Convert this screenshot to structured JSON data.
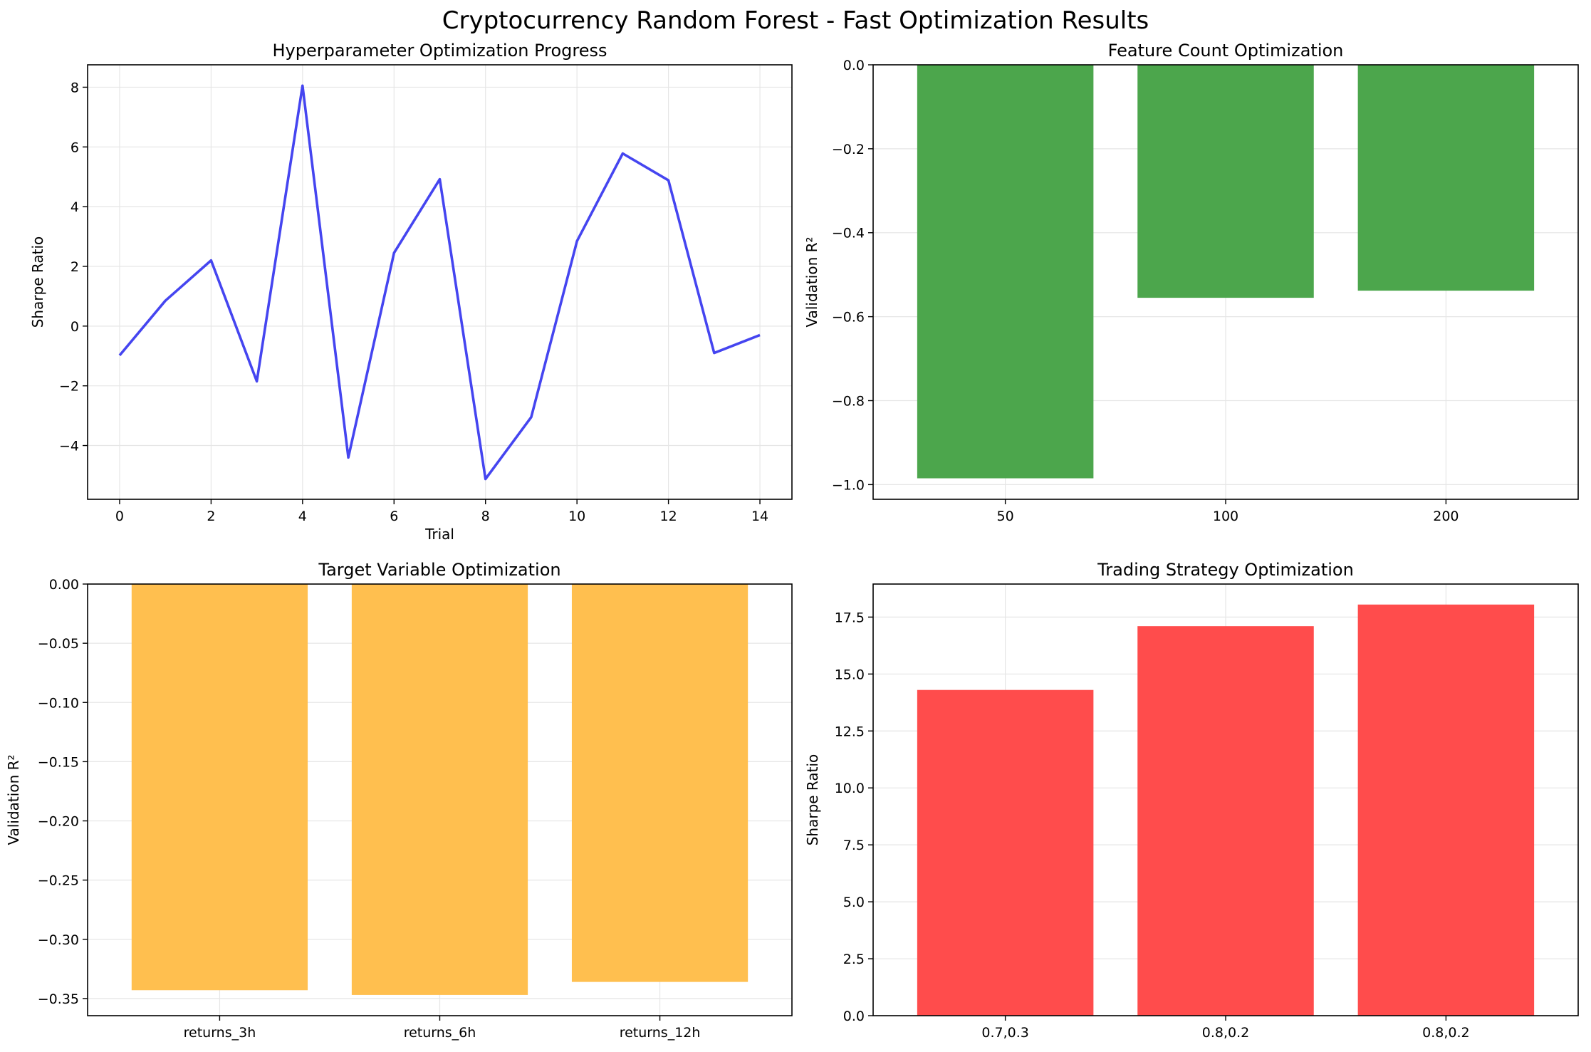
{
  "figure": {
    "title": "Cryptocurrency Random Forest - Fast Optimization Results"
  },
  "chart_data": [
    {
      "id": "hyper",
      "type": "line",
      "title": "Hyperparameter Optimization Progress",
      "xlabel": "Trial",
      "ylabel": "Sharpe Ratio",
      "x": [
        0,
        1,
        2,
        3,
        4,
        5,
        6,
        7,
        8,
        9,
        10,
        11,
        12,
        13,
        14
      ],
      "series": [
        {
          "values": [
            -0.98,
            0.85,
            2.2,
            -1.85,
            8.05,
            -4.4,
            2.45,
            4.92,
            -5.12,
            -3.05,
            2.85,
            5.78,
            4.88,
            -0.9,
            -0.3
          ],
          "color": "#4545f0"
        }
      ],
      "xlim": [
        -0.7,
        14.7
      ],
      "ylim": [
        -5.8,
        8.75
      ],
      "xticks": [
        0,
        2,
        4,
        6,
        8,
        10,
        12,
        14
      ],
      "yticks": [
        -4,
        -2,
        0,
        2,
        4,
        6,
        8
      ],
      "grid": true
    },
    {
      "id": "feature",
      "type": "bar",
      "title": "Feature Count Optimization",
      "xlabel": "",
      "ylabel": "Validation R²",
      "categories": [
        "50",
        "100",
        "200"
      ],
      "values": [
        -0.985,
        -0.555,
        -0.538
      ],
      "color": "#4ca64c",
      "ylim": [
        -1.035,
        0.0
      ],
      "yticks": [
        -1.0,
        -0.8,
        -0.6,
        -0.4,
        -0.2,
        0.0
      ],
      "ytick_labels": [
        "−1.0",
        "−0.8",
        "−0.6",
        "−0.4",
        "−0.2",
        "0.0"
      ],
      "grid": true
    },
    {
      "id": "target",
      "type": "bar",
      "title": "Target Variable Optimization",
      "xlabel": "",
      "ylabel": "Validation R²",
      "categories": [
        "returns_3h",
        "returns_6h",
        "returns_12h"
      ],
      "values": [
        -0.343,
        -0.347,
        -0.336
      ],
      "color": "#ffbf4f",
      "ylim": [
        -0.3645,
        0.0
      ],
      "yticks": [
        -0.35,
        -0.3,
        -0.25,
        -0.2,
        -0.15,
        -0.1,
        -0.05,
        0.0
      ],
      "ytick_labels": [
        "−0.35",
        "−0.30",
        "−0.25",
        "−0.20",
        "−0.15",
        "−0.10",
        "−0.05",
        "0.00"
      ],
      "grid": true
    },
    {
      "id": "trading",
      "type": "bar",
      "title": "Trading Strategy Optimization",
      "xlabel": "",
      "ylabel": "Sharpe Ratio",
      "categories": [
        "0.7,0.3",
        "0.8,0.2",
        "0.8,0.2"
      ],
      "values": [
        14.3,
        17.1,
        18.05
      ],
      "color": "#ff4c4c",
      "ylim": [
        0,
        18.95
      ],
      "yticks": [
        0.0,
        2.5,
        5.0,
        7.5,
        10.0,
        12.5,
        15.0,
        17.5
      ],
      "ytick_labels": [
        "0.0",
        "2.5",
        "5.0",
        "7.5",
        "10.0",
        "12.5",
        "15.0",
        "17.5"
      ],
      "grid": true
    }
  ]
}
